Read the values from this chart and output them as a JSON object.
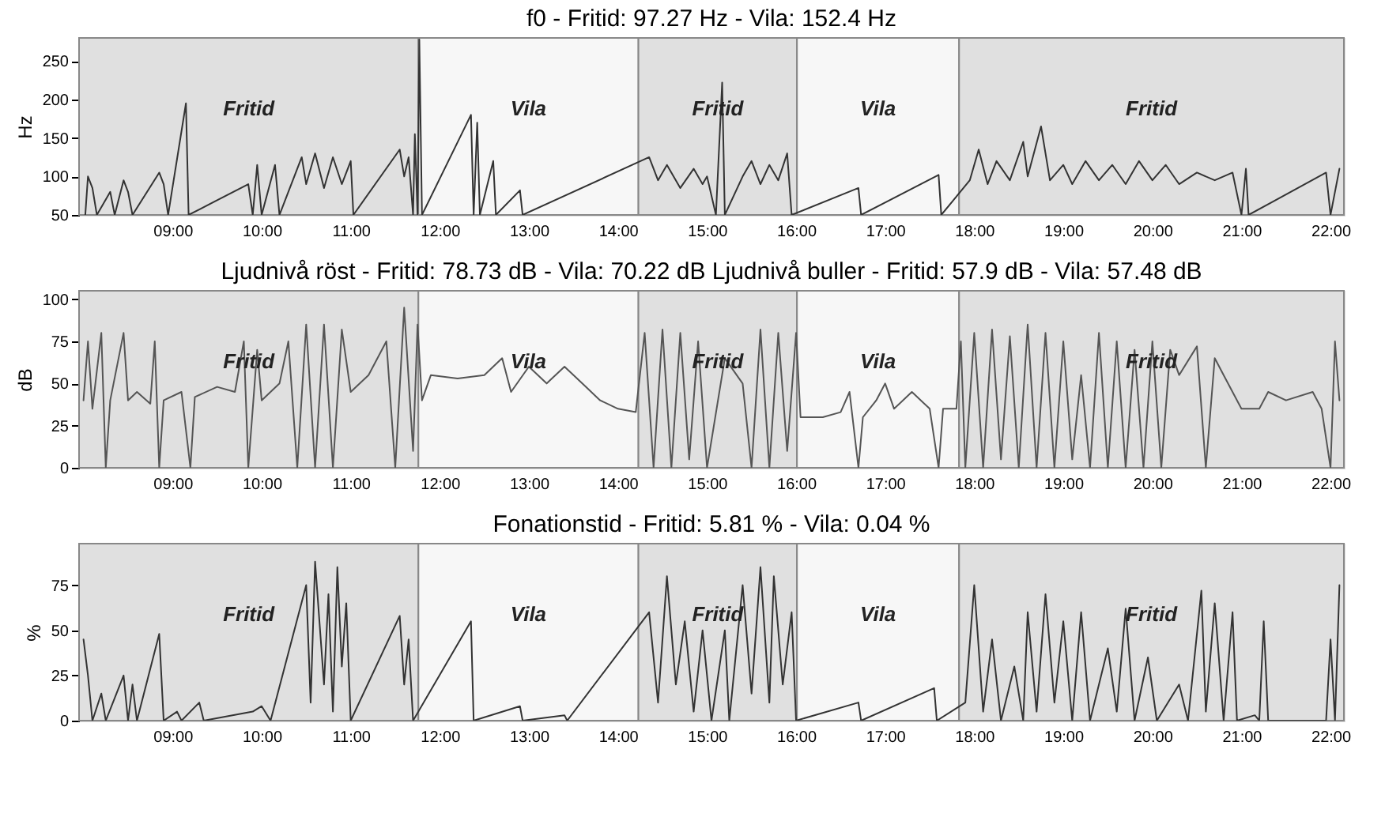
{
  "chart_data": [
    {
      "type": "line",
      "title": "f0 - Fritid: 97.27 Hz - Vila: 152.4 Hz",
      "ylabel": "Hz",
      "xlim": [
        7.95,
        22.15
      ],
      "ylim": [
        50,
        280
      ],
      "yticks": [
        50,
        100,
        150,
        200,
        250
      ],
      "xticks": [
        {
          "value": 9,
          "label": "09:00"
        },
        {
          "value": 10,
          "label": "10:00"
        },
        {
          "value": 11,
          "label": "11:00"
        },
        {
          "value": 12,
          "label": "12:00"
        },
        {
          "value": 13,
          "label": "13:00"
        },
        {
          "value": 14,
          "label": "14:00"
        },
        {
          "value": 15,
          "label": "15:00"
        },
        {
          "value": 16,
          "label": "16:00"
        },
        {
          "value": 17,
          "label": "17:00"
        },
        {
          "value": 18,
          "label": "18:00"
        },
        {
          "value": 19,
          "label": "19:00"
        },
        {
          "value": 20,
          "label": "20:00"
        },
        {
          "value": 21,
          "label": "21:00"
        },
        {
          "value": 22,
          "label": "22:00"
        }
      ],
      "bands": [
        {
          "axis": "x",
          "from": 7.95,
          "to": 11.76,
          "label": "Fritid",
          "color": "#e0e0e0"
        },
        {
          "axis": "x",
          "from": 11.76,
          "to": 14.23,
          "label": "Vila",
          "color": "#f7f7f7"
        },
        {
          "axis": "x",
          "from": 14.23,
          "to": 16.01,
          "label": "Fritid",
          "color": "#e0e0e0"
        },
        {
          "axis": "x",
          "from": 16.01,
          "to": 17.83,
          "label": "Vila",
          "color": "#f7f7f7"
        },
        {
          "axis": "x",
          "from": 17.83,
          "to": 22.15,
          "label": "Fritid",
          "color": "#e0e0e0"
        }
      ],
      "series": [
        {
          "color": "#333333",
          "x": [
            8.02,
            8.05,
            8.1,
            8.15,
            8.3,
            8.35,
            8.45,
            8.5,
            8.55,
            8.85,
            8.9,
            8.95,
            9.15,
            9.18,
            9.85,
            9.9,
            9.95,
            10.0,
            10.15,
            10.2,
            10.45,
            10.5,
            10.6,
            10.7,
            10.8,
            10.9,
            11.0,
            11.03,
            11.55,
            11.6,
            11.65,
            11.7,
            11.72,
            11.75,
            11.77,
            11.8,
            12.35,
            12.38,
            12.42,
            12.45,
            12.6,
            12.63,
            12.9,
            12.93,
            14.35,
            14.45,
            14.55,
            14.7,
            14.85,
            14.95,
            15.0,
            15.1,
            15.17,
            15.2,
            15.4,
            15.5,
            15.6,
            15.7,
            15.8,
            15.9,
            15.95,
            16.7,
            16.73,
            17.6,
            17.63,
            17.95,
            18.05,
            18.15,
            18.25,
            18.4,
            18.55,
            18.6,
            18.75,
            18.85,
            19.0,
            19.1,
            19.25,
            19.4,
            19.55,
            19.7,
            19.85,
            20.0,
            20.15,
            20.3,
            20.5,
            20.7,
            20.9,
            21.0,
            21.05,
            21.08,
            21.95,
            22.0,
            22.1
          ],
          "values": [
            50,
            100,
            85,
            50,
            80,
            50,
            95,
            80,
            50,
            105,
            90,
            50,
            195,
            50,
            90,
            50,
            115,
            50,
            115,
            50,
            125,
            90,
            130,
            85,
            125,
            90,
            120,
            50,
            135,
            100,
            125,
            50,
            155,
            50,
            278,
            50,
            180,
            50,
            170,
            50,
            120,
            50,
            82,
            50,
            125,
            95,
            115,
            85,
            110,
            90,
            100,
            50,
            222,
            50,
            100,
            120,
            90,
            115,
            95,
            130,
            50,
            85,
            50,
            102,
            50,
            95,
            135,
            90,
            120,
            95,
            145,
            100,
            165,
            95,
            115,
            90,
            120,
            95,
            115,
            90,
            120,
            95,
            115,
            90,
            105,
            95,
            105,
            50,
            110,
            50,
            105,
            50,
            110
          ]
        }
      ]
    },
    {
      "type": "line",
      "title": "Ljudnivå röst - Fritid: 78.73 dB - Vila: 70.22 dB     Ljudnivå buller - Fritid: 57.9 dB - Vila: 57.48 dB",
      "ylabel": "dB",
      "xlim": [
        7.95,
        22.15
      ],
      "ylim": [
        0,
        105
      ],
      "yticks": [
        0,
        25,
        50,
        75,
        100
      ],
      "xticks": [
        {
          "value": 9,
          "label": "09:00"
        },
        {
          "value": 10,
          "label": "10:00"
        },
        {
          "value": 11,
          "label": "11:00"
        },
        {
          "value": 12,
          "label": "12:00"
        },
        {
          "value": 13,
          "label": "13:00"
        },
        {
          "value": 14,
          "label": "14:00"
        },
        {
          "value": 15,
          "label": "15:00"
        },
        {
          "value": 16,
          "label": "16:00"
        },
        {
          "value": 17,
          "label": "17:00"
        },
        {
          "value": 18,
          "label": "18:00"
        },
        {
          "value": 19,
          "label": "19:00"
        },
        {
          "value": 20,
          "label": "20:00"
        },
        {
          "value": 21,
          "label": "21:00"
        },
        {
          "value": 22,
          "label": "22:00"
        }
      ],
      "bands": [
        {
          "axis": "x",
          "from": 7.95,
          "to": 11.76,
          "label": "Fritid",
          "color": "#e0e0e0"
        },
        {
          "axis": "x",
          "from": 11.76,
          "to": 14.23,
          "label": "Vila",
          "color": "#f7f7f7"
        },
        {
          "axis": "x",
          "from": 14.23,
          "to": 16.01,
          "label": "Fritid",
          "color": "#e0e0e0"
        },
        {
          "axis": "x",
          "from": 16.01,
          "to": 17.83,
          "label": "Vila",
          "color": "#f7f7f7"
        },
        {
          "axis": "x",
          "from": 17.83,
          "to": 22.15,
          "label": "Fritid",
          "color": "#e0e0e0"
        }
      ],
      "series": [
        {
          "color": "#555555",
          "x": [
            8.0,
            8.05,
            8.1,
            8.2,
            8.25,
            8.3,
            8.45,
            8.5,
            8.6,
            8.75,
            8.8,
            8.85,
            8.9,
            9.1,
            9.2,
            9.25,
            9.5,
            9.7,
            9.8,
            9.85,
            9.95,
            10.0,
            10.2,
            10.3,
            10.4,
            10.5,
            10.6,
            10.7,
            10.8,
            10.9,
            11.0,
            11.2,
            11.4,
            11.5,
            11.6,
            11.7,
            11.75,
            11.8,
            11.9,
            12.2,
            12.5,
            12.7,
            12.8,
            13.0,
            13.2,
            13.4,
            13.6,
            13.8,
            14.0,
            14.2,
            14.3,
            14.4,
            14.5,
            14.6,
            14.7,
            14.8,
            14.9,
            15.0,
            15.2,
            15.4,
            15.5,
            15.6,
            15.7,
            15.8,
            15.9,
            16.0,
            16.05,
            16.3,
            16.5,
            16.6,
            16.7,
            16.75,
            16.9,
            17.0,
            17.1,
            17.3,
            17.5,
            17.6,
            17.65,
            17.8,
            17.85,
            17.9,
            18.0,
            18.1,
            18.2,
            18.3,
            18.4,
            18.5,
            18.6,
            18.7,
            18.8,
            18.9,
            19.0,
            19.1,
            19.2,
            19.3,
            19.4,
            19.5,
            19.6,
            19.7,
            19.8,
            19.9,
            20.0,
            20.1,
            20.2,
            20.3,
            20.5,
            20.6,
            20.7,
            20.8,
            21.0,
            21.2,
            21.3,
            21.5,
            21.8,
            21.9,
            22.0,
            22.05,
            22.1
          ],
          "values": [
            40,
            75,
            35,
            80,
            0,
            40,
            80,
            40,
            45,
            38,
            75,
            0,
            40,
            45,
            0,
            42,
            48,
            45,
            75,
            0,
            70,
            40,
            50,
            75,
            0,
            85,
            0,
            85,
            0,
            82,
            45,
            55,
            75,
            0,
            95,
            10,
            85,
            40,
            55,
            53,
            55,
            65,
            45,
            60,
            50,
            60,
            50,
            40,
            35,
            33,
            80,
            0,
            82,
            0,
            80,
            5,
            75,
            0,
            65,
            50,
            0,
            82,
            0,
            80,
            10,
            80,
            30,
            30,
            33,
            45,
            0,
            30,
            40,
            50,
            35,
            45,
            35,
            0,
            35,
            35,
            75,
            0,
            80,
            0,
            82,
            5,
            78,
            0,
            85,
            0,
            80,
            0,
            75,
            5,
            55,
            0,
            80,
            0,
            75,
            0,
            70,
            0,
            75,
            0,
            70,
            55,
            72,
            0,
            65,
            55,
            35,
            35,
            45,
            40,
            45,
            35,
            0,
            75,
            40
          ]
        }
      ]
    },
    {
      "type": "line",
      "title": "Fonationstid - Fritid: 5.81 % - Vila: 0.04 %",
      "ylabel": "%",
      "xlim": [
        7.95,
        22.15
      ],
      "ylim": [
        0,
        98
      ],
      "yticks": [
        0,
        25,
        50,
        75
      ],
      "xticks": [
        {
          "value": 9,
          "label": "09:00"
        },
        {
          "value": 10,
          "label": "10:00"
        },
        {
          "value": 11,
          "label": "11:00"
        },
        {
          "value": 12,
          "label": "12:00"
        },
        {
          "value": 13,
          "label": "13:00"
        },
        {
          "value": 14,
          "label": "14:00"
        },
        {
          "value": 15,
          "label": "15:00"
        },
        {
          "value": 16,
          "label": "16:00"
        },
        {
          "value": 17,
          "label": "17:00"
        },
        {
          "value": 18,
          "label": "18:00"
        },
        {
          "value": 19,
          "label": "19:00"
        },
        {
          "value": 20,
          "label": "20:00"
        },
        {
          "value": 21,
          "label": "21:00"
        },
        {
          "value": 22,
          "label": "22:00"
        }
      ],
      "bands": [
        {
          "axis": "x",
          "from": 7.95,
          "to": 11.76,
          "label": "Fritid",
          "color": "#e0e0e0"
        },
        {
          "axis": "x",
          "from": 11.76,
          "to": 14.23,
          "label": "Vila",
          "color": "#f7f7f7"
        },
        {
          "axis": "x",
          "from": 14.23,
          "to": 16.01,
          "label": "Fritid",
          "color": "#e0e0e0"
        },
        {
          "axis": "x",
          "from": 16.01,
          "to": 17.83,
          "label": "Vila",
          "color": "#f7f7f7"
        },
        {
          "axis": "x",
          "from": 17.83,
          "to": 22.15,
          "label": "Fritid",
          "color": "#e0e0e0"
        }
      ],
      "series": [
        {
          "color": "#333333",
          "x": [
            8.0,
            8.05,
            8.1,
            8.2,
            8.25,
            8.45,
            8.5,
            8.55,
            8.6,
            8.85,
            8.9,
            9.05,
            9.1,
            9.3,
            9.35,
            9.9,
            10.0,
            10.1,
            10.5,
            10.55,
            10.6,
            10.7,
            10.75,
            10.8,
            10.85,
            10.9,
            10.95,
            11.0,
            11.55,
            11.6,
            11.65,
            11.7,
            12.35,
            12.38,
            12.9,
            12.93,
            13.4,
            13.43,
            14.35,
            14.45,
            14.55,
            14.65,
            14.75,
            14.85,
            14.95,
            15.05,
            15.2,
            15.25,
            15.4,
            15.5,
            15.6,
            15.7,
            15.75,
            15.85,
            15.95,
            16.0,
            16.7,
            16.73,
            17.55,
            17.58,
            17.9,
            18.0,
            18.1,
            18.2,
            18.3,
            18.45,
            18.55,
            18.6,
            18.7,
            18.8,
            18.9,
            19.0,
            19.1,
            19.2,
            19.3,
            19.5,
            19.6,
            19.7,
            19.8,
            19.95,
            20.05,
            20.3,
            20.4,
            20.55,
            20.6,
            20.7,
            20.8,
            20.9,
            20.95,
            21.15,
            21.2,
            21.25,
            21.3,
            21.95,
            22.0,
            22.05,
            22.1
          ],
          "values": [
            45,
            25,
            0,
            15,
            0,
            25,
            0,
            20,
            0,
            48,
            0,
            5,
            0,
            10,
            0,
            5,
            8,
            0,
            75,
            10,
            88,
            20,
            70,
            5,
            85,
            30,
            65,
            0,
            58,
            20,
            45,
            0,
            55,
            0,
            8,
            0,
            3,
            0,
            60,
            10,
            80,
            20,
            55,
            5,
            50,
            0,
            50,
            0,
            75,
            15,
            85,
            10,
            80,
            20,
            60,
            0,
            10,
            0,
            18,
            0,
            10,
            75,
            5,
            45,
            0,
            30,
            0,
            60,
            5,
            70,
            10,
            55,
            0,
            60,
            0,
            40,
            5,
            62,
            0,
            35,
            0,
            20,
            0,
            72,
            5,
            65,
            0,
            60,
            0,
            3,
            0,
            55,
            0,
            0,
            45,
            0,
            75
          ]
        }
      ]
    }
  ]
}
